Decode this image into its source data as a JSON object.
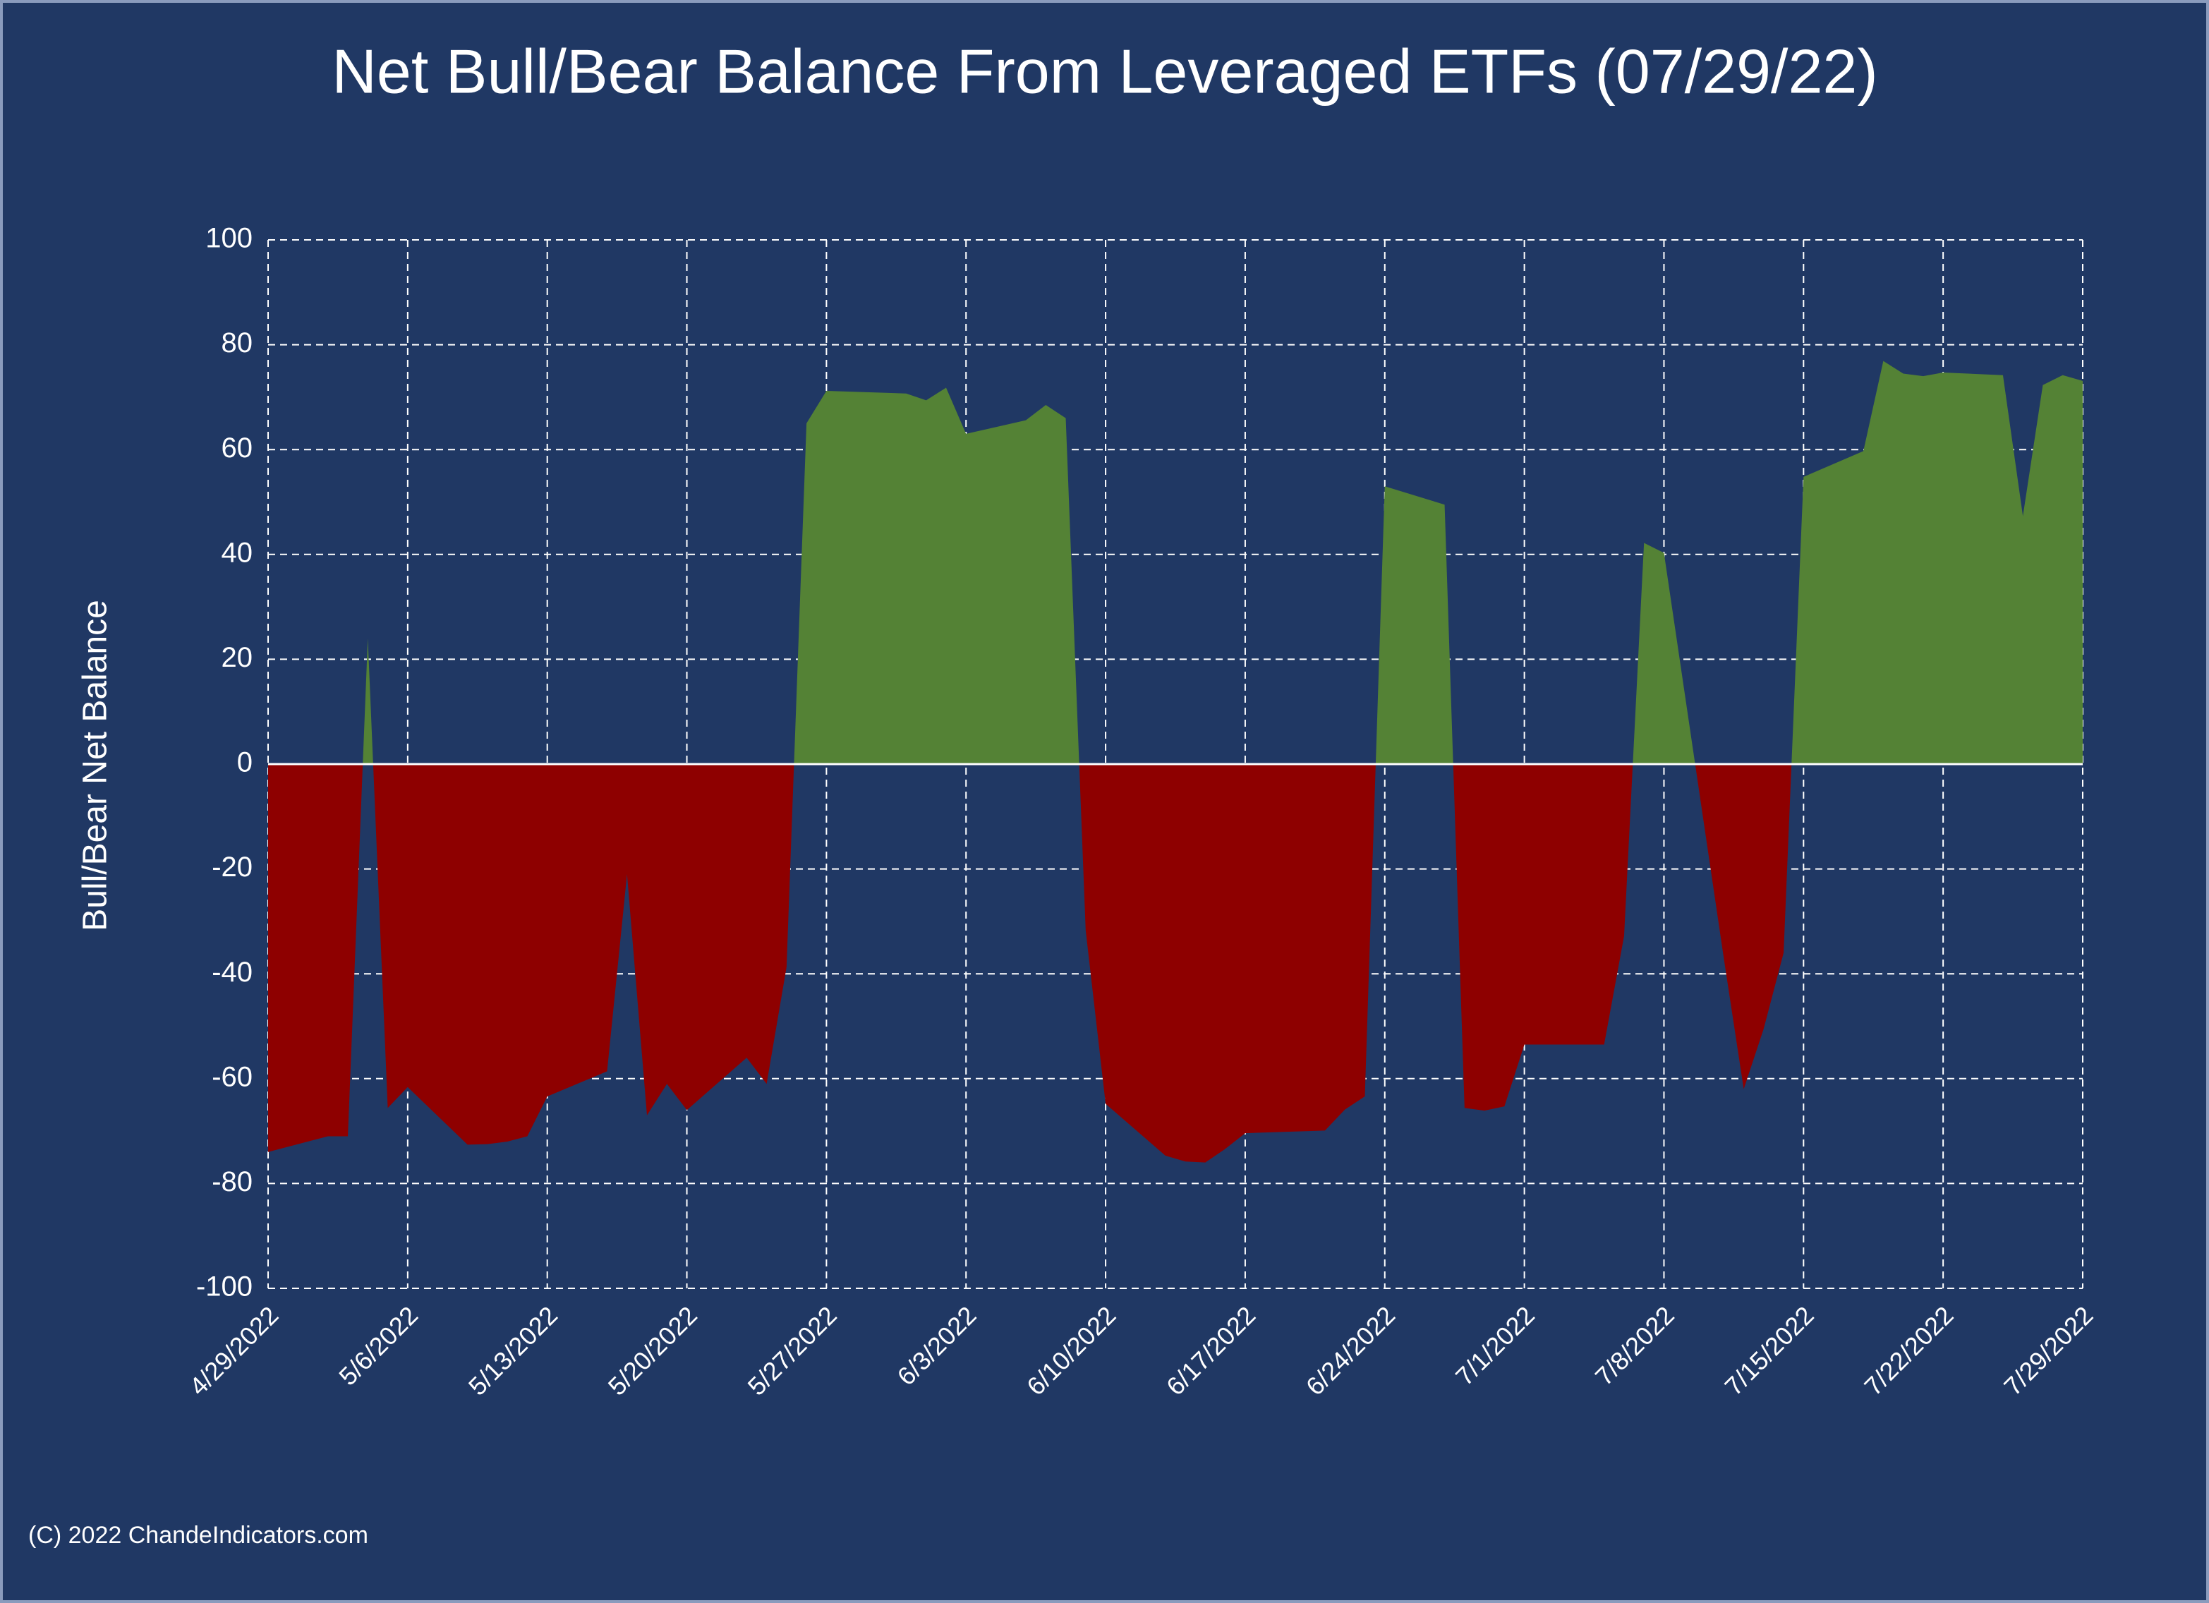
{
  "chart_data": {
    "type": "area",
    "title": "Net Bull/Bear Balance From Leveraged ETFs (07/29/22)",
    "y_label": "Bull/Bear Net Balance",
    "footer": "(C) 2022 ChandeIndicators.com",
    "x": [
      "4/29/2022",
      "5/2/2022",
      "5/3/2022",
      "5/4/2022",
      "5/5/2022",
      "5/6/2022",
      "5/9/2022",
      "5/10/2022",
      "5/11/2022",
      "5/12/2022",
      "5/13/2022",
      "5/16/2022",
      "5/17/2022",
      "5/18/2022",
      "5/19/2022",
      "5/20/2022",
      "5/23/2022",
      "5/24/2022",
      "5/25/2022",
      "5/26/2022",
      "5/27/2022",
      "5/31/2022",
      "6/1/2022",
      "6/2/2022",
      "6/3/2022",
      "6/6/2022",
      "6/7/2022",
      "6/8/2022",
      "6/9/2022",
      "6/10/2022",
      "6/13/2022",
      "6/14/2022",
      "6/15/2022",
      "6/16/2022",
      "6/17/2022",
      "6/21/2022",
      "6/22/2022",
      "6/23/2022",
      "6/24/2022",
      "6/27/2022",
      "6/28/2022",
      "6/29/2022",
      "6/30/2022",
      "7/1/2022",
      "7/5/2022",
      "7/6/2022",
      "7/7/2022",
      "7/8/2022",
      "7/11/2022",
      "7/12/2022",
      "7/13/2022",
      "7/14/2022",
      "7/15/2022",
      "7/18/2022",
      "7/19/2022",
      "7/20/2022",
      "7/21/2022",
      "7/22/2022",
      "7/25/2022",
      "7/26/2022",
      "7/27/2022",
      "7/28/2022",
      "7/29/2022"
    ],
    "series": [
      {
        "name": "Net Balance",
        "positive_color": "#548235",
        "negative_color": "#8e0000",
        "values": [
          -74,
          -71,
          -71,
          24,
          -65.6,
          -61.6,
          -72.6,
          -72.5,
          -72,
          -71,
          -63.4,
          -58.6,
          -21,
          -67,
          -61,
          -66,
          -56,
          -61,
          -38.7,
          65,
          71.2,
          70.7,
          69.4,
          71.8,
          63,
          65.6,
          68.5,
          66,
          -31.7,
          -64.8,
          -74.7,
          -75.8,
          -76,
          -73.4,
          -70.4,
          -69.9,
          -65.9,
          -63.4,
          53,
          49.5,
          -65.6,
          -66.1,
          -65.3,
          -53.5,
          -53.5,
          -32.8,
          42.2,
          40.3,
          -37,
          -62,
          -50.5,
          -36,
          54.8,
          59.7,
          76.9,
          74.5,
          74,
          74.7,
          74.2,
          47.3,
          72.3,
          74.2,
          73.1
        ]
      }
    ],
    "xlim": [
      "4/29/2022",
      "7/29/2022"
    ],
    "xticks": [
      "4/29/2022",
      "5/6/2022",
      "5/13/2022",
      "5/20/2022",
      "5/27/2022",
      "6/3/2022",
      "6/10/2022",
      "6/17/2022",
      "6/24/2022",
      "7/1/2022",
      "7/8/2022",
      "7/15/2022",
      "7/22/2022",
      "7/29/2022"
    ],
    "ylim": [
      -100,
      100
    ],
    "yticks": [
      -100,
      -80,
      -60,
      -40,
      -20,
      0,
      20,
      40,
      60,
      80,
      100
    ],
    "grid": true
  }
}
